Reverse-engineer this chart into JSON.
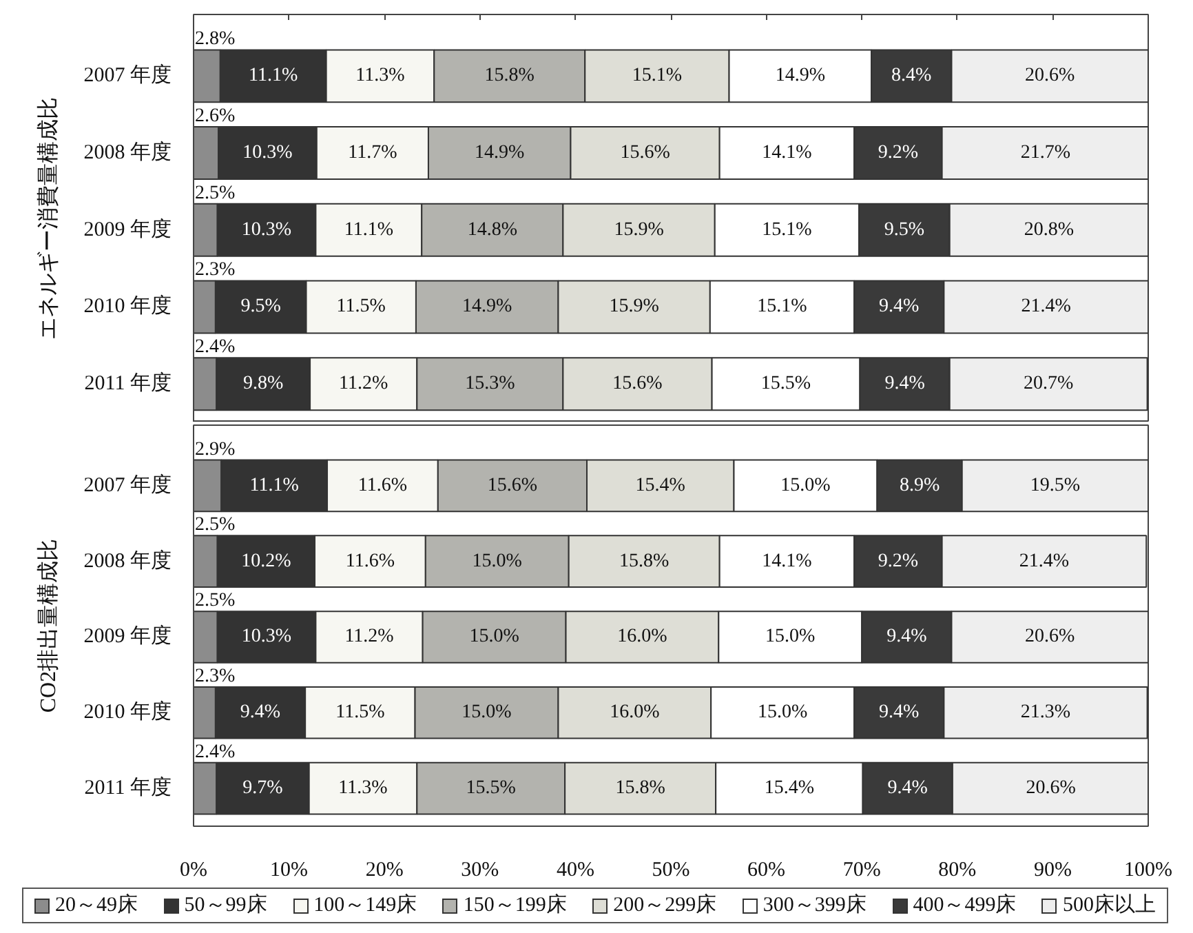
{
  "chart_data": [
    {
      "type": "bar",
      "orientation": "horizontal",
      "stacked": true,
      "ylabel": "エネルギー消費量構成比",
      "categories": [
        "2007 年度",
        "2008 年度",
        "2009 年度",
        "2010 年度",
        "2011 年度"
      ],
      "xlim": [
        0,
        100
      ],
      "xticks": [
        {
          "value": 0,
          "label": null
        },
        {
          "value": 10,
          "label": null
        },
        {
          "value": 20,
          "label": null
        },
        {
          "value": 30,
          "label": null
        },
        {
          "value": 40,
          "label": null
        },
        {
          "value": 50,
          "label": null
        },
        {
          "value": 60,
          "label": null
        },
        {
          "value": 70,
          "label": null
        },
        {
          "value": 80,
          "label": null
        },
        {
          "value": 90,
          "label": null
        },
        {
          "value": 100,
          "label": null
        }
      ],
      "tick_labels": "y",
      "series": [
        {
          "color": "#8c8c8c",
          "values": [
            2.8,
            2.6,
            2.5,
            2.3,
            2.4
          ],
          "value_labels": [
            "2.8%",
            "2.6%",
            "2.5%",
            "2.3%",
            "2.4%"
          ]
        },
        {
          "color": "#333333",
          "values": [
            11.1,
            10.3,
            10.3,
            9.5,
            9.8
          ],
          "value_labels": [
            "11.1%",
            "10.3%",
            "10.3%",
            "9.5%",
            "9.8%"
          ]
        },
        {
          "color": "#f7f7f2",
          "values": [
            11.3,
            11.7,
            11.1,
            11.5,
            11.2
          ],
          "value_labels": [
            "11.3%",
            "11.7%",
            "11.1%",
            "11.5%",
            "11.2%"
          ]
        },
        {
          "color": "#b3b3ae",
          "values": [
            15.8,
            14.9,
            14.8,
            14.9,
            15.3
          ],
          "value_labels": [
            "15.8%",
            "14.9%",
            "14.8%",
            "14.9%",
            "15.3%"
          ]
        },
        {
          "color": "#deded6",
          "values": [
            15.1,
            15.6,
            15.9,
            15.9,
            15.6
          ],
          "value_labels": [
            "15.1%",
            "15.6%",
            "15.9%",
            "15.9%",
            "15.6%"
          ]
        },
        {
          "color": "#ffffff",
          "values": [
            14.9,
            14.1,
            15.1,
            15.1,
            15.5
          ],
          "value_labels": [
            "14.9%",
            "14.1%",
            "15.1%",
            "15.1%",
            "15.5%"
          ]
        },
        {
          "color": "#3a3a3a",
          "values": [
            8.4,
            9.2,
            9.5,
            9.4,
            9.4
          ],
          "value_labels": [
            "8.4%",
            "9.2%",
            "9.5%",
            "9.4%",
            "9.4%"
          ]
        },
        {
          "color": "#eeeeee",
          "values": [
            20.6,
            21.7,
            20.8,
            21.4,
            20.7
          ],
          "value_labels": [
            "20.6%",
            "21.7%",
            "20.8%",
            "21.4%",
            "20.7%"
          ]
        }
      ]
    },
    {
      "type": "bar",
      "orientation": "horizontal",
      "stacked": true,
      "ylabel": "CO2排出量構成比",
      "categories": [
        "2007 年度",
        "2008 年度",
        "2009 年度",
        "2010 年度",
        "2011 年度"
      ],
      "xlim": [
        0,
        100
      ],
      "xticks": [
        {
          "value": 0,
          "label": "0%"
        },
        {
          "value": 10,
          "label": "10%"
        },
        {
          "value": 20,
          "label": "20%"
        },
        {
          "value": 30,
          "label": "30%"
        },
        {
          "value": 40,
          "label": "40%"
        },
        {
          "value": 50,
          "label": "50%"
        },
        {
          "value": 60,
          "label": "60%"
        },
        {
          "value": 70,
          "label": "70%"
        },
        {
          "value": 80,
          "label": "80%"
        },
        {
          "value": 90,
          "label": "90%"
        },
        {
          "value": 100,
          "label": "100%"
        }
      ],
      "legend": "bottom",
      "series": [
        {
          "name": "20～49床",
          "color": "#8c8c8c",
          "values": [
            2.9,
            2.5,
            2.5,
            2.3,
            2.4
          ],
          "value_labels": [
            "2.9%",
            "2.5%",
            "2.5%",
            "2.3%",
            "2.4%"
          ]
        },
        {
          "name": "50～99床",
          "color": "#333333",
          "values": [
            11.1,
            10.2,
            10.3,
            9.4,
            9.7
          ],
          "value_labels": [
            "11.1%",
            "10.2%",
            "10.3%",
            "9.4%",
            "9.7%"
          ]
        },
        {
          "name": "100～149床",
          "color": "#f7f7f2",
          "values": [
            11.6,
            11.6,
            11.2,
            11.5,
            11.3
          ],
          "value_labels": [
            "11.6%",
            "11.6%",
            "11.2%",
            "11.5%",
            "11.3%"
          ]
        },
        {
          "name": "150～199床",
          "color": "#b3b3ae",
          "values": [
            15.6,
            15.0,
            15.0,
            15.0,
            15.5
          ],
          "value_labels": [
            "15.6%",
            "15.0%",
            "15.0%",
            "15.0%",
            "15.5%"
          ]
        },
        {
          "name": "200～299床",
          "color": "#deded6",
          "values": [
            15.4,
            15.8,
            16.0,
            16.0,
            15.8
          ],
          "value_labels": [
            "15.4%",
            "15.8%",
            "16.0%",
            "16.0%",
            "15.8%"
          ]
        },
        {
          "name": "300～399床",
          "color": "#ffffff",
          "values": [
            15.0,
            14.1,
            15.0,
            15.0,
            15.4
          ],
          "value_labels": [
            "15.0%",
            "14.1%",
            "15.0%",
            "15.0%",
            "15.4%"
          ]
        },
        {
          "name": "400～499床",
          "color": "#3a3a3a",
          "values": [
            8.9,
            9.2,
            9.4,
            9.4,
            9.4
          ],
          "value_labels": [
            "8.9%",
            "9.2%",
            "9.4%",
            "9.4%",
            "9.4%"
          ]
        },
        {
          "name": "500床以上",
          "color": "#eeeeee",
          "values": [
            19.5,
            21.4,
            20.6,
            21.3,
            20.6
          ],
          "value_labels": [
            "19.5%",
            "21.4%",
            "20.6%",
            "21.3%",
            "20.6%"
          ]
        }
      ]
    }
  ]
}
